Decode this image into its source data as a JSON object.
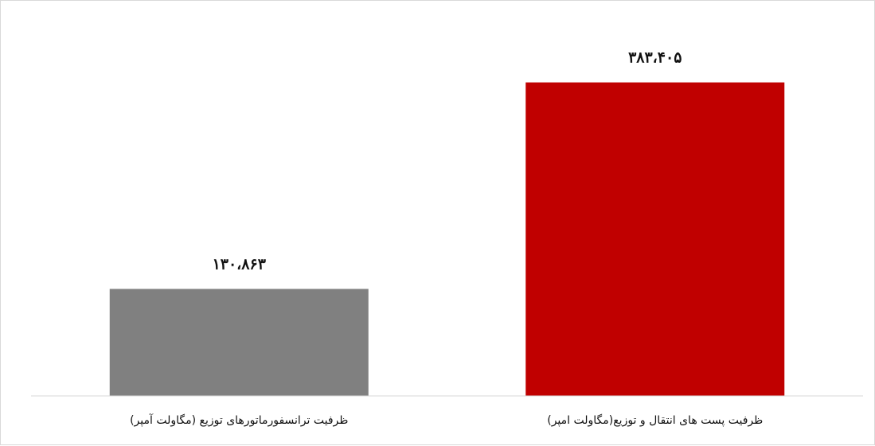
{
  "chart_data": {
    "type": "bar",
    "categories": [
      "ظرفیت پست های انتقال و توزیع(مگاولت امپر)",
      "ظرفیت ترانسفورماتورهای توزیع (مگاولت آمپر)"
    ],
    "values": [
      383405,
      130863
    ],
    "value_labels": [
      "۳۸۳،۴۰۵",
      "۱۳۰،۸۶۳"
    ],
    "colors": [
      "#c00000",
      "#808080"
    ],
    "ylim": [
      0,
      420000
    ],
    "grid": false,
    "legend": "none",
    "axis_color": "#d9d9d9"
  }
}
